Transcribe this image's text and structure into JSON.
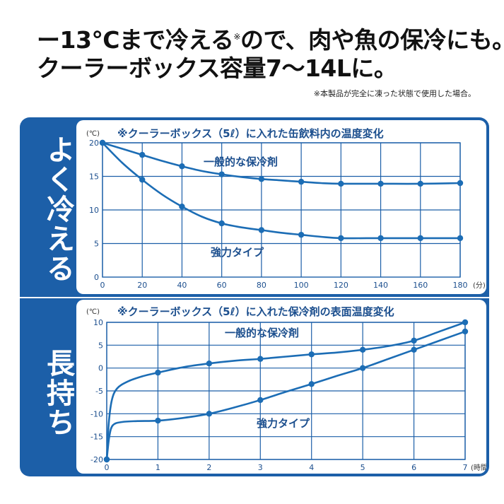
{
  "headline": {
    "line1_a": "ー13",
    "line1_b": "℃まで冷える",
    "line1_mark": "※",
    "line1_c": "ので、肉や魚の保冷にも。",
    "line2": "クーラーボックス容量7〜14Lに。"
  },
  "footnote": "※本製品が完全に凍った状態で使用した場合。",
  "tabs": {
    "top": "よく冷える",
    "bottom": "長持ち"
  },
  "colors": {
    "accent": "#1c5fa8",
    "line": "#1c6db5"
  },
  "chart_data": [
    {
      "type": "line",
      "title": "※クーラーボックス（5ℓ）に入れた缶飲料内の温度変化",
      "y_unit": "(℃)",
      "x_unit": "(分)",
      "x": [
        0,
        20,
        40,
        60,
        80,
        100,
        120,
        140,
        160,
        180
      ],
      "x_ticks": [
        "0",
        "20",
        "40",
        "60",
        "80",
        "100",
        "120",
        "140",
        "160",
        "180"
      ],
      "y_ticks": [
        "5",
        "10",
        "15",
        "20"
      ],
      "xlim": [
        0,
        180
      ],
      "ylim": [
        0,
        20
      ],
      "grid": true,
      "series": [
        {
          "name": "一般的な保冷剤",
          "values": [
            20,
            18.2,
            16.5,
            15.3,
            14.6,
            14.2,
            13.9,
            13.9,
            13.9,
            14.0
          ]
        },
        {
          "name": "強力タイプ",
          "values": [
            20,
            14.5,
            10.5,
            8.0,
            7.0,
            6.3,
            5.8,
            5.8,
            5.8,
            5.8
          ]
        }
      ],
      "series_curve": [
        [
          [
            0,
            20
          ],
          [
            10,
            19.1
          ],
          [
            20,
            18.2
          ],
          [
            30,
            17.3
          ],
          [
            40,
            16.5
          ],
          [
            50,
            15.8
          ],
          [
            60,
            15.3
          ],
          [
            70,
            14.9
          ],
          [
            80,
            14.6
          ],
          [
            90,
            14.4
          ],
          [
            100,
            14.2
          ],
          [
            110,
            14.0
          ],
          [
            120,
            13.9
          ],
          [
            140,
            13.9
          ],
          [
            160,
            13.9
          ],
          [
            180,
            14.0
          ]
        ],
        [
          [
            0,
            20
          ],
          [
            10,
            17.0
          ],
          [
            20,
            14.5
          ],
          [
            30,
            12.3
          ],
          [
            40,
            10.5
          ],
          [
            50,
            9.0
          ],
          [
            60,
            8.0
          ],
          [
            70,
            7.4
          ],
          [
            80,
            7.0
          ],
          [
            90,
            6.6
          ],
          [
            100,
            6.3
          ],
          [
            110,
            6.0
          ],
          [
            120,
            5.8
          ],
          [
            140,
            5.8
          ],
          [
            160,
            5.8
          ],
          [
            180,
            5.8
          ]
        ]
      ]
    },
    {
      "type": "line",
      "title": "※クーラーボックス（5ℓ）に入れた保冷剤の表面温度変化",
      "y_unit": "(℃)",
      "x_unit": "(時間)",
      "x": [
        0,
        1,
        2,
        3,
        4,
        5,
        6,
        7
      ],
      "x_ticks": [
        "0",
        "1",
        "2",
        "3",
        "4",
        "5",
        "6",
        "7"
      ],
      "y_ticks": [
        "10",
        "5",
        "0",
        "-5",
        "-10",
        "-15",
        "-20"
      ],
      "xlim": [
        0,
        7
      ],
      "ylim": [
        -20,
        10
      ],
      "grid": true,
      "series": [
        {
          "name": "一般的な保冷剤",
          "values": [
            -20,
            -1,
            1,
            2,
            3,
            4,
            6,
            10
          ]
        },
        {
          "name": "強力タイプ",
          "values": [
            -20,
            -11.5,
            -10,
            -7,
            -3.5,
            0,
            4,
            8
          ]
        }
      ],
      "series_curve": [
        [
          [
            0,
            -20
          ],
          [
            0.04,
            -12
          ],
          [
            0.1,
            -7
          ],
          [
            0.2,
            -4.5
          ],
          [
            0.4,
            -3
          ],
          [
            0.7,
            -1.8
          ],
          [
            1,
            -1
          ],
          [
            1.5,
            0.2
          ],
          [
            2,
            1
          ],
          [
            2.5,
            1.6
          ],
          [
            3,
            2
          ],
          [
            3.5,
            2.5
          ],
          [
            4,
            3
          ],
          [
            4.5,
            3.4
          ],
          [
            5,
            4
          ],
          [
            5.5,
            4.8
          ],
          [
            6,
            6
          ],
          [
            6.5,
            8
          ],
          [
            7,
            10
          ]
        ],
        [
          [
            0,
            -20
          ],
          [
            0.05,
            -15
          ],
          [
            0.12,
            -12.5
          ],
          [
            0.3,
            -11.8
          ],
          [
            0.6,
            -11.6
          ],
          [
            1,
            -11.5
          ],
          [
            1.5,
            -10.9
          ],
          [
            2,
            -10
          ],
          [
            2.5,
            -8.6
          ],
          [
            3,
            -7
          ],
          [
            3.5,
            -5.2
          ],
          [
            4,
            -3.5
          ],
          [
            4.5,
            -1.7
          ],
          [
            5,
            0
          ],
          [
            5.5,
            2
          ],
          [
            6,
            4
          ],
          [
            6.5,
            6
          ],
          [
            7,
            8
          ]
        ]
      ]
    }
  ]
}
